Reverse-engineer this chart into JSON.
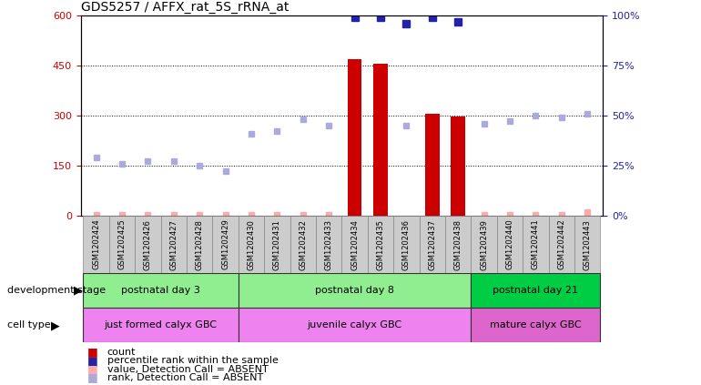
{
  "title": "GDS5257 / AFFX_rat_5S_rRNA_at",
  "samples": [
    "GSM1202424",
    "GSM1202425",
    "GSM1202426",
    "GSM1202427",
    "GSM1202428",
    "GSM1202429",
    "GSM1202430",
    "GSM1202431",
    "GSM1202432",
    "GSM1202433",
    "GSM1202434",
    "GSM1202435",
    "GSM1202436",
    "GSM1202437",
    "GSM1202438",
    "GSM1202439",
    "GSM1202440",
    "GSM1202441",
    "GSM1202442",
    "GSM1202443"
  ],
  "count_values": [
    null,
    null,
    null,
    null,
    null,
    null,
    null,
    null,
    null,
    null,
    470,
    455,
    null,
    305,
    298,
    null,
    null,
    null,
    null,
    null
  ],
  "rank_values_pct": [
    null,
    null,
    null,
    null,
    null,
    null,
    null,
    null,
    null,
    null,
    99,
    99,
    96,
    99,
    97,
    null,
    null,
    null,
    null,
    null
  ],
  "absent_value_scaled": [
    3,
    3,
    3,
    3,
    3,
    3,
    3,
    3,
    3,
    3,
    null,
    null,
    null,
    null,
    null,
    3,
    3,
    3,
    3,
    10
  ],
  "absent_rank_pct": [
    29,
    26,
    27,
    27,
    25,
    22,
    41,
    42,
    48,
    45,
    null,
    null,
    45,
    null,
    null,
    46,
    47,
    50,
    49,
    51
  ],
  "ylim_left": [
    0,
    600
  ],
  "ylim_right": [
    0,
    100
  ],
  "yticks_left": [
    0,
    150,
    300,
    450,
    600
  ],
  "yticks_right": [
    0,
    25,
    50,
    75,
    100
  ],
  "bar_color": "#cc0000",
  "rank_color": "#2222aa",
  "absent_value_color": "#ffaaaa",
  "absent_rank_color": "#aaaadd",
  "legend_items": [
    {
      "label": "count",
      "color": "#cc0000"
    },
    {
      "label": "percentile rank within the sample",
      "color": "#2222aa"
    },
    {
      "label": "value, Detection Call = ABSENT",
      "color": "#ffaaaa"
    },
    {
      "label": "rank, Detection Call = ABSENT",
      "color": "#aaaadd"
    }
  ],
  "dev_groups": [
    {
      "label": "postnatal day 3",
      "start": 0,
      "end": 5,
      "color": "#90ee90"
    },
    {
      "label": "postnatal day 8",
      "start": 6,
      "end": 14,
      "color": "#90ee90"
    },
    {
      "label": "postnatal day 21",
      "start": 15,
      "end": 19,
      "color": "#00cc44"
    }
  ],
  "cell_groups": [
    {
      "label": "just formed calyx GBC",
      "start": 0,
      "end": 5,
      "color": "#ee82ee"
    },
    {
      "label": "juvenile calyx GBC",
      "start": 6,
      "end": 14,
      "color": "#ee82ee"
    },
    {
      "label": "mature calyx GBC",
      "start": 15,
      "end": 19,
      "color": "#dd66cc"
    }
  ]
}
